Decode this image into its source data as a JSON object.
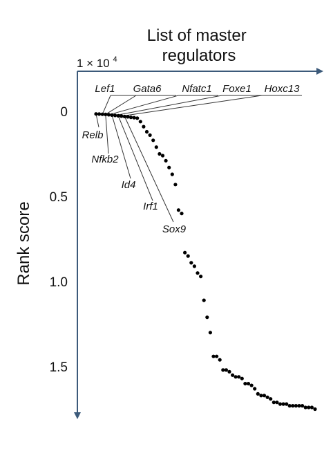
{
  "chart_data": {
    "type": "scatter",
    "title": "",
    "xlabel": "List of master\nregulators",
    "ylabel": "Rank score",
    "y_multiplier": "1 × 10",
    "y_multiplier_exp": "4",
    "y_ticks": [
      "0",
      "0.5",
      "1.0",
      "1.5"
    ],
    "y_tick_values": [
      0,
      0.5,
      1.0,
      1.5
    ],
    "ylim": [
      0,
      1.75
    ],
    "y_inverted": true,
    "x_range": [
      1,
      80
    ],
    "points": [
      {
        "x": 1,
        "y": 0.015
      },
      {
        "x": 2,
        "y": 0.016
      },
      {
        "x": 3,
        "y": 0.017
      },
      {
        "x": 4,
        "y": 0.018
      },
      {
        "x": 5,
        "y": 0.02
      },
      {
        "x": 6,
        "y": 0.022
      },
      {
        "x": 7,
        "y": 0.024
      },
      {
        "x": 8,
        "y": 0.026
      },
      {
        "x": 9,
        "y": 0.028
      },
      {
        "x": 10,
        "y": 0.03
      },
      {
        "x": 11,
        "y": 0.032
      },
      {
        "x": 12,
        "y": 0.035
      },
      {
        "x": 13,
        "y": 0.037
      },
      {
        "x": 14,
        "y": 0.04
      },
      {
        "x": 15,
        "y": 0.06
      },
      {
        "x": 16,
        "y": 0.09
      },
      {
        "x": 17,
        "y": 0.12
      },
      {
        "x": 18,
        "y": 0.14
      },
      {
        "x": 19,
        "y": 0.17
      },
      {
        "x": 20,
        "y": 0.21
      },
      {
        "x": 21,
        "y": 0.25
      },
      {
        "x": 22,
        "y": 0.26
      },
      {
        "x": 23,
        "y": 0.29
      },
      {
        "x": 24,
        "y": 0.33
      },
      {
        "x": 25,
        "y": 0.37
      },
      {
        "x": 26,
        "y": 0.43
      },
      {
        "x": 27,
        "y": 0.58
      },
      {
        "x": 28,
        "y": 0.6
      },
      {
        "x": 29,
        "y": 0.83
      },
      {
        "x": 30,
        "y": 0.85
      },
      {
        "x": 31,
        "y": 0.89
      },
      {
        "x": 32,
        "y": 0.91
      },
      {
        "x": 33,
        "y": 0.95
      },
      {
        "x": 34,
        "y": 0.97
      },
      {
        "x": 35,
        "y": 1.11
      },
      {
        "x": 36,
        "y": 1.21
      },
      {
        "x": 37,
        "y": 1.3
      },
      {
        "x": 38,
        "y": 1.44
      },
      {
        "x": 39,
        "y": 1.44
      },
      {
        "x": 40,
        "y": 1.46
      },
      {
        "x": 41,
        "y": 1.52
      },
      {
        "x": 42,
        "y": 1.52
      },
      {
        "x": 43,
        "y": 1.53
      },
      {
        "x": 44,
        "y": 1.55
      },
      {
        "x": 45,
        "y": 1.56
      },
      {
        "x": 46,
        "y": 1.56
      },
      {
        "x": 47,
        "y": 1.57
      },
      {
        "x": 48,
        "y": 1.6
      },
      {
        "x": 49,
        "y": 1.6
      },
      {
        "x": 50,
        "y": 1.61
      },
      {
        "x": 51,
        "y": 1.63
      },
      {
        "x": 52,
        "y": 1.66
      },
      {
        "x": 53,
        "y": 1.67
      },
      {
        "x": 54,
        "y": 1.67
      },
      {
        "x": 55,
        "y": 1.68
      },
      {
        "x": 56,
        "y": 1.69
      },
      {
        "x": 57,
        "y": 1.71
      },
      {
        "x": 58,
        "y": 1.71
      },
      {
        "x": 59,
        "y": 1.72
      },
      {
        "x": 60,
        "y": 1.72
      },
      {
        "x": 61,
        "y": 1.72
      },
      {
        "x": 62,
        "y": 1.73
      },
      {
        "x": 63,
        "y": 1.73
      },
      {
        "x": 64,
        "y": 1.73
      },
      {
        "x": 65,
        "y": 1.73
      },
      {
        "x": 66,
        "y": 1.73
      },
      {
        "x": 67,
        "y": 1.74
      },
      {
        "x": 68,
        "y": 1.74
      },
      {
        "x": 69,
        "y": 1.74
      },
      {
        "x": 70,
        "y": 1.75
      }
    ],
    "annotations_top": [
      {
        "label": "Lef1",
        "point_index": 2
      },
      {
        "label": "Gata6",
        "point_index": 3
      },
      {
        "label": "Nfatc1",
        "point_index": 4
      },
      {
        "label": "Foxe1",
        "point_index": 6
      },
      {
        "label": "Hoxc13",
        "point_index": 8
      }
    ],
    "annotations_bottom": [
      {
        "label": "Relb",
        "point_index": 0
      },
      {
        "label": "Nfkb2",
        "point_index": 3
      },
      {
        "label": "Id4",
        "point_index": 5
      },
      {
        "label": "Irf1",
        "point_index": 7
      },
      {
        "label": "Sox9",
        "point_index": 9
      }
    ],
    "colors": {
      "axis": "#3c5a7a",
      "points": "#000000",
      "leader": "#333333"
    }
  }
}
